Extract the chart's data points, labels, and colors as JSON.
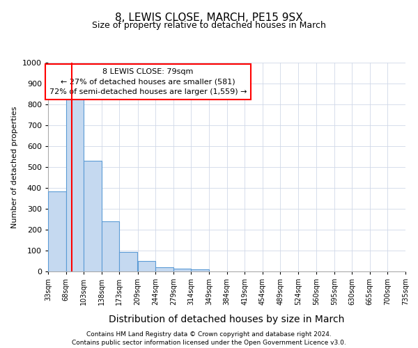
{
  "title1": "8, LEWIS CLOSE, MARCH, PE15 9SX",
  "title2": "Size of property relative to detached houses in March",
  "xlabel": "Distribution of detached houses by size in March",
  "ylabel": "Number of detached properties",
  "bin_edges": [
    33,
    68,
    103,
    138,
    173,
    209,
    244,
    279,
    314,
    349,
    384,
    419,
    454,
    489,
    524,
    560,
    595,
    630,
    665,
    700,
    735
  ],
  "bar_heights": [
    385,
    830,
    530,
    240,
    95,
    50,
    20,
    15,
    10,
    0,
    0,
    0,
    0,
    0,
    0,
    0,
    0,
    0,
    0,
    0
  ],
  "bar_color": "#c5d9f0",
  "bar_edge_color": "#5b9bd5",
  "red_line_x": 79,
  "annotation_line1": "8 LEWIS CLOSE: 79sqm",
  "annotation_line2": "← 27% of detached houses are smaller (581)",
  "annotation_line3": "72% of semi-detached houses are larger (1,559) →",
  "ylim": [
    0,
    1000
  ],
  "yticks": [
    0,
    100,
    200,
    300,
    400,
    500,
    600,
    700,
    800,
    900,
    1000
  ],
  "footnote1": "Contains HM Land Registry data © Crown copyright and database right 2024.",
  "footnote2": "Contains public sector information licensed under the Open Government Licence v3.0.",
  "grid_color": "#d0d8e8",
  "title1_fontsize": 11,
  "title2_fontsize": 9,
  "ylabel_fontsize": 8,
  "xlabel_fontsize": 10
}
